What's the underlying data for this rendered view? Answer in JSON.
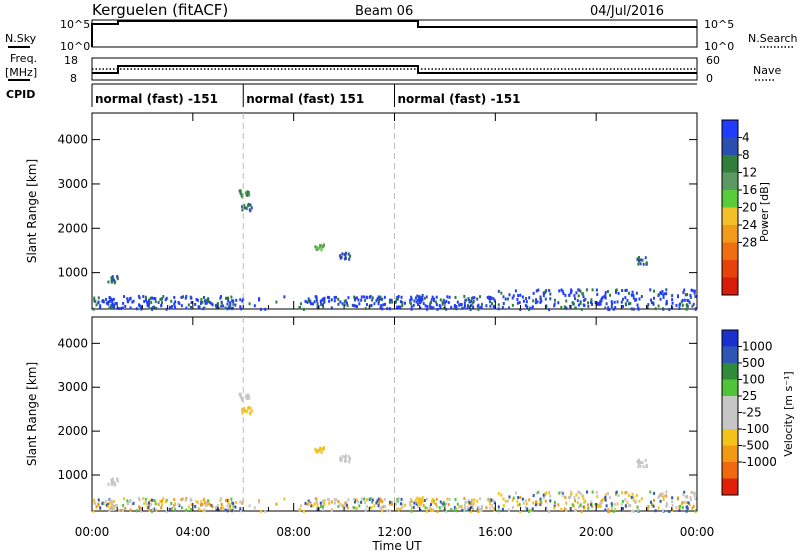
{
  "header": {
    "station": "Kerguelen (fitACF)",
    "beam": "Beam 06",
    "date": "04/Jul/2016"
  },
  "side_labels": {
    "nsky": "N.Sky",
    "nsearch": "N.Search",
    "freq_line1": "Freq.",
    "freq_line2": "[MHz]",
    "nave": "Nave",
    "cpid": "CPID"
  },
  "noise_panel": {
    "left_ticks": [
      "10^5",
      "10^0"
    ],
    "right_ticks": [
      "10^5",
      "10^0"
    ]
  },
  "freq_panel": {
    "left_ticks": [
      "18",
      "8"
    ],
    "right_ticks": [
      "60",
      "0"
    ]
  },
  "cpid_segments": [
    {
      "label": "normal (fast) -151",
      "start_h": 0,
      "end_h": 6
    },
    {
      "label": "normal (fast) 151",
      "start_h": 6,
      "end_h": 12
    },
    {
      "label": "normal (fast) -151",
      "start_h": 12,
      "end_h": 24
    }
  ],
  "x_axis": {
    "title": "Time UT",
    "ticks": [
      "00:00",
      "04:00",
      "08:00",
      "12:00",
      "16:00",
      "20:00",
      "00:00"
    ],
    "range_h": [
      0,
      24
    ]
  },
  "power_panel": {
    "ylabel": "Slant Range [km]",
    "yticks": [
      "1000",
      "2000",
      "3000",
      "4000"
    ],
    "cbar_label": "Power [dB]",
    "cbar_ticks": [
      "4",
      "8",
      "12",
      "16",
      "20",
      "24",
      "28"
    ],
    "cbar_colors": [
      "#1f3cff",
      "#2b4fb0",
      "#2f7f3a",
      "#5c9a63",
      "#58cc3a",
      "#f3c02a",
      "#f29a1a",
      "#ef6f10",
      "#e8420c",
      "#d81c0a"
    ]
  },
  "velocity_panel": {
    "ylabel": "Slant Range [km]",
    "yticks": [
      "1000",
      "2000",
      "3000",
      "4000"
    ],
    "cbar_label": "Velocity [m s⁻¹]",
    "cbar_ticks": [
      "1000",
      "500",
      "100",
      "25",
      "-25",
      "-100",
      "-500",
      "-1000"
    ],
    "cbar_colors": [
      "#1b2fcf",
      "#2e56b3",
      "#2f8a3c",
      "#4fc439",
      "#c6c6c6",
      "#c6c6c6",
      "#f5c21d",
      "#f39a14",
      "#ef6a0f",
      "#e0200b"
    ]
  },
  "chart_data": {
    "type": "heatmap",
    "title": "Kerguelen (fitACF)  Beam 06  04/Jul/2016",
    "xlabel": "Time UT",
    "ylabel": "Slant Range [km]",
    "x_range_hours": [
      0,
      24
    ],
    "y_range_km": [
      180,
      4600
    ],
    "panels": [
      "Power [dB]",
      "Velocity [m s-1]"
    ],
    "scatter_clusters": [
      {
        "t_h": 0.8,
        "range_km": 880,
        "power_db": 6,
        "velocity": 25
      },
      {
        "t_h": 6.0,
        "range_km": 2800,
        "power_db": 10,
        "velocity": -25
      },
      {
        "t_h": 6.1,
        "range_km": 2500,
        "power_db": 6,
        "velocity": -80
      },
      {
        "t_h": 9.0,
        "range_km": 1600,
        "power_db": 14,
        "velocity": -100
      },
      {
        "t_h": 10.0,
        "range_km": 1400,
        "power_db": 6,
        "velocity": 25
      },
      {
        "t_h": 13.0,
        "range_km": 450,
        "power_db": 4,
        "velocity": -100
      },
      {
        "t_h": 21.8,
        "range_km": 1300,
        "power_db": 8,
        "velocity": -25
      }
    ]
  }
}
